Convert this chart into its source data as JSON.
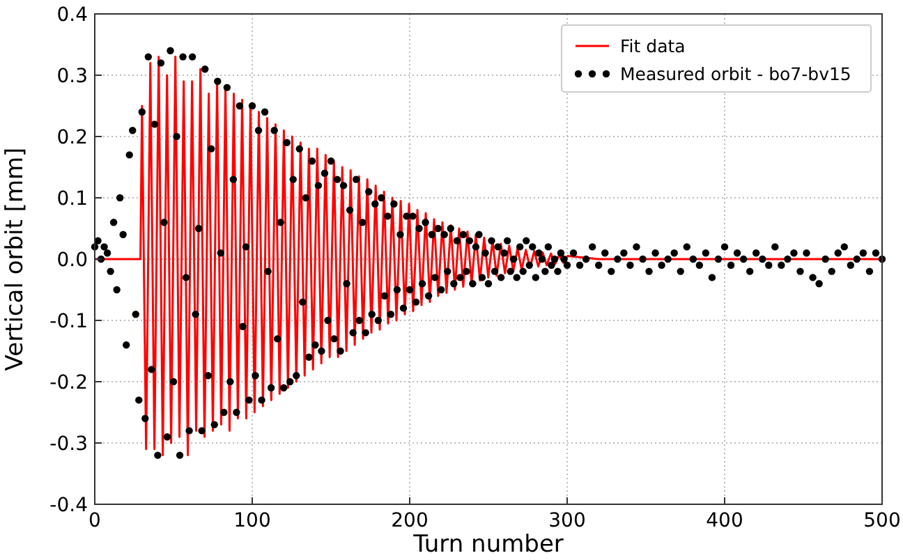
{
  "chart_data": {
    "type": "line",
    "xlabel": "Turn number",
    "ylabel": "Vertical orbit [mm]",
    "xlim": [
      0,
      500
    ],
    "ylim": [
      -0.4,
      0.4
    ],
    "xticks": [
      0,
      100,
      200,
      300,
      400,
      500
    ],
    "yticks": [
      -0.4,
      -0.3,
      -0.2,
      -0.1,
      {
        "value": 0,
        "label": "0.0"
      },
      0.1,
      0.2,
      0.3,
      0.4
    ],
    "grid": true,
    "legend": "top right",
    "series": [
      {
        "name": "Fit data",
        "color": "#ff0000",
        "line_style": "solid",
        "marker": "none",
        "x": [
          0,
          29,
          30,
          32.6,
          35.3,
          37.9,
          40.6,
          43.2,
          45.9,
          48.5,
          51.2,
          53.8,
          56.5,
          59.1,
          61.8,
          64.4,
          67.1,
          69.7,
          72.4,
          75,
          77.7,
          80.3,
          83,
          85.6,
          88.3,
          90.9,
          93.6,
          96.2,
          98.9,
          101.5,
          104.2,
          106.8,
          109.5,
          112.1,
          114.8,
          117.4,
          120.1,
          122.7,
          125.4,
          128,
          130.7,
          133.3,
          136,
          138.6,
          141.3,
          143.9,
          146.6,
          149.2,
          151.9,
          154.5,
          157.2,
          159.8,
          162.5,
          165.1,
          167.8,
          170.4,
          173.1,
          175.7,
          178.4,
          181,
          183.7,
          186.3,
          189,
          191.6,
          194.3,
          196.9,
          199.6,
          202.2,
          204.9,
          207.5,
          210.2,
          212.8,
          215.5,
          218.1,
          220.8,
          223.4,
          226.1,
          228.7,
          231.4,
          234,
          236.7,
          239.3,
          242,
          244.6,
          247.3,
          249.9,
          252.6,
          255.2,
          257.9,
          260.5,
          263.2,
          265.8,
          268.5,
          271.1,
          273.8,
          276.4,
          279.1,
          281.7,
          284.4,
          287,
          289.7,
          292.3,
          295,
          297.6,
          300.3,
          320,
          500
        ],
        "values": [
          0,
          0,
          0.25,
          -0.31,
          0.32,
          -0.31,
          0.33,
          -0.32,
          0.3,
          -0.3,
          0.33,
          -0.29,
          0.29,
          -0.32,
          0.29,
          -0.28,
          0.31,
          -0.29,
          0.27,
          -0.28,
          0.29,
          -0.27,
          0.28,
          -0.28,
          0.27,
          -0.26,
          0.26,
          -0.26,
          0.25,
          -0.25,
          0.24,
          -0.24,
          0.23,
          -0.23,
          0.22,
          -0.22,
          0.21,
          -0.21,
          0.2,
          -0.2,
          0.19,
          -0.19,
          0.18,
          -0.18,
          0.18,
          -0.17,
          0.17,
          -0.16,
          0.16,
          -0.16,
          0.15,
          -0.15,
          0.145,
          -0.14,
          0.135,
          -0.13,
          0.13,
          -0.12,
          0.12,
          -0.115,
          0.11,
          -0.105,
          0.1,
          -0.1,
          0.095,
          -0.09,
          0.09,
          -0.085,
          0.08,
          -0.075,
          0.075,
          -0.07,
          0.065,
          -0.06,
          0.06,
          -0.055,
          0.055,
          -0.05,
          0.05,
          -0.045,
          0.045,
          -0.04,
          0.04,
          -0.035,
          0.035,
          -0.03,
          0.03,
          -0.027,
          0.025,
          -0.023,
          0.022,
          -0.02,
          0.018,
          -0.017,
          0.015,
          -0.014,
          0.013,
          -0.012,
          0.011,
          -0.01,
          0.009,
          -0.008,
          0.007,
          -0.006,
          0.005,
          0,
          0
        ]
      },
      {
        "name": "Measured orbit - bo7-bv15",
        "type": "scatter",
        "color": "#000000",
        "marker": "circle",
        "x": [
          0,
          2,
          4,
          6,
          8,
          10,
          12,
          14,
          16,
          18,
          20,
          22,
          24,
          26,
          28,
          30,
          32,
          34,
          36,
          38,
          40,
          42,
          44,
          46,
          48,
          50,
          52,
          54,
          56,
          58,
          60,
          62,
          64,
          66,
          68,
          70,
          72,
          74,
          76,
          78,
          80,
          82,
          84,
          86,
          88,
          90,
          92,
          94,
          96,
          98,
          100,
          102,
          104,
          106,
          108,
          110,
          112,
          114,
          116,
          118,
          120,
          122,
          124,
          126,
          128,
          130,
          132,
          134,
          136,
          138,
          140,
          142,
          144,
          146,
          148,
          150,
          152,
          154,
          156,
          158,
          160,
          162,
          164,
          166,
          168,
          170,
          172,
          174,
          176,
          178,
          180,
          182,
          184,
          186,
          188,
          190,
          192,
          194,
          196,
          198,
          200,
          202,
          204,
          206,
          208,
          210,
          212,
          214,
          216,
          218,
          220,
          222,
          224,
          226,
          228,
          230,
          232,
          234,
          236,
          238,
          240,
          242,
          244,
          246,
          248,
          250,
          252,
          254,
          256,
          258,
          260,
          262,
          264,
          266,
          268,
          270,
          272,
          274,
          276,
          278,
          280,
          282,
          284,
          286,
          288,
          290,
          292,
          294,
          296,
          298,
          300,
          304,
          308,
          312,
          316,
          320,
          324,
          328,
          332,
          336,
          340,
          344,
          348,
          352,
          356,
          360,
          364,
          368,
          372,
          376,
          380,
          384,
          388,
          392,
          396,
          400,
          404,
          408,
          412,
          416,
          420,
          424,
          428,
          432,
          436,
          440,
          444,
          448,
          452,
          456,
          460,
          464,
          468,
          472,
          476,
          480,
          484,
          488,
          492,
          496,
          500
        ],
        "values": [
          0.02,
          0.03,
          0.0,
          0.02,
          0.01,
          -0.02,
          0.06,
          -0.05,
          0.1,
          0.04,
          -0.14,
          0.17,
          0.21,
          -0.09,
          -0.23,
          0.24,
          -0.26,
          0.33,
          -0.18,
          0.22,
          -0.32,
          0.32,
          0.06,
          -0.29,
          0.34,
          -0.2,
          0.2,
          -0.32,
          0.33,
          -0.03,
          -0.28,
          0.33,
          -0.09,
          0.05,
          -0.28,
          0.31,
          -0.19,
          0.18,
          -0.27,
          0.29,
          0.01,
          -0.25,
          0.28,
          -0.2,
          0.13,
          -0.25,
          0.25,
          -0.11,
          0.02,
          -0.23,
          0.25,
          -0.19,
          0.21,
          -0.23,
          0.24,
          -0.02,
          -0.21,
          0.21,
          -0.13,
          0.06,
          -0.21,
          0.19,
          -0.2,
          0.13,
          -0.19,
          0.18,
          -0.07,
          0.1,
          -0.16,
          0.16,
          -0.14,
          0.12,
          -0.15,
          0.14,
          -0.1,
          0.16,
          -0.13,
          0.13,
          -0.15,
          0.12,
          -0.04,
          0.08,
          -0.12,
          0.13,
          -0.1,
          0.06,
          -0.12,
          0.11,
          -0.09,
          0.09,
          -0.1,
          0.1,
          -0.06,
          0.07,
          -0.09,
          0.09,
          -0.05,
          0.04,
          -0.08,
          0.07,
          -0.05,
          0.07,
          -0.07,
          0.05,
          -0.04,
          0.06,
          -0.06,
          0.04,
          -0.03,
          0.05,
          -0.05,
          0.04,
          -0.02,
          0.05,
          -0.04,
          0.03,
          -0.03,
          0.04,
          -0.02,
          0.03,
          -0.04,
          0.02,
          0.04,
          -0.03,
          0.01,
          -0.04,
          0.03,
          -0.02,
          0.02,
          -0.03,
          0.01,
          0.03,
          -0.02,
          0.0,
          -0.03,
          0.02,
          -0.02,
          0.03,
          -0.01,
          0.02,
          -0.03,
          0.01,
          0.0,
          -0.02,
          0.02,
          -0.01,
          0.0,
          -0.02,
          0.01,
          0.0,
          -0.01,
          0.01,
          -0.01,
          0.0,
          0.02,
          -0.01,
          0.01,
          -0.02,
          0.0,
          0.01,
          -0.01,
          0.02,
          0.0,
          -0.02,
          0.01,
          -0.01,
          0.0,
          0.01,
          -0.02,
          0.02,
          0.0,
          -0.01,
          0.01,
          -0.03,
          0.0,
          0.02,
          -0.01,
          0.01,
          0.0,
          -0.02,
          0.01,
          0.0,
          -0.01,
          0.02,
          -0.01,
          0.0,
          0.01,
          -0.02,
          0.01,
          -0.03,
          -0.04,
          0.0,
          -0.02,
          0.01,
          0.02,
          -0.01,
          0.0,
          0.01,
          -0.02,
          0.01,
          0.0
        ]
      }
    ]
  }
}
